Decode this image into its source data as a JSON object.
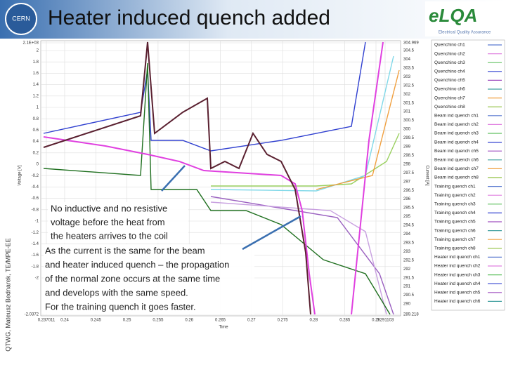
{
  "header": {
    "title": "Heater induced quench added"
  },
  "sidebar": {
    "footer": "QTWG, Mateusz Bednarek, TE/MPE-EE"
  },
  "logos": {
    "left": "CERN",
    "right": "eLQA",
    "right_subtitle": "Electrical Quality Assurance"
  },
  "plot": {
    "x_label": "Time",
    "y_label": "Voltage [V]",
    "y2_label": "Current [A]",
    "x_ticks": [
      "0.237011",
      "0.24",
      "0.245",
      "0.25",
      "0.255",
      "0.26",
      "0.265",
      "0.27",
      "0.275",
      "0.28",
      "0.285",
      "0.29",
      "0.291103"
    ],
    "y_ticks": [
      "2.1E+03",
      "2",
      "1.8",
      "1.6",
      "1.4",
      "1.2",
      "1",
      "0.8",
      "0.6",
      "0.4",
      "0.2",
      "0",
      "-0.2",
      "-0.4",
      "-0.6",
      "-0.8",
      "-1",
      "-1.2",
      "-1.4",
      "-1.6",
      "-1.8",
      "-2",
      "-2.0372"
    ],
    "y2_ticks": [
      "304.969",
      "304.5",
      "304",
      "303.5",
      "303",
      "302.5",
      "302",
      "301.5",
      "301",
      "300.5",
      "300",
      "299.5",
      "299",
      "298.5",
      "298",
      "297.5",
      "297",
      "296.5",
      "296",
      "295.5",
      "295",
      "294.5",
      "294",
      "293.5",
      "293",
      "292.5",
      "292",
      "291.5",
      "291",
      "290.5",
      "290",
      "289.218"
    ],
    "legend": [
      "Quenchino ch1",
      "Quenchino ch2",
      "Quenchino ch3",
      "Quenchino ch4",
      "Quenchino ch5",
      "Quenchino ch6",
      "Quenchino ch7",
      "Quenchino ch8",
      "Beam ind quench ch1",
      "Beam ind quench ch2",
      "Beam ind quench ch3",
      "Beam ind quench ch4",
      "Beam ind quench ch5",
      "Beam ind quench ch6",
      "Beam ind quench ch7",
      "Beam ind quench ch8",
      "Training quench ch1",
      "Training quench ch2",
      "Training quench ch3",
      "Training quench ch4",
      "Training quench ch5",
      "Training quench ch6",
      "Training quench ch7",
      "Training quench ch8",
      "Heater ind quench ch1",
      "Heater ind quench ch2",
      "Heater ind quench ch3",
      "Heater ind quench ch4",
      "Heater ind quench ch5",
      "Heater ind quench ch6"
    ]
  },
  "annotations": [
    {
      "lines": [
        "No inductive and no resistive",
        "voltage before the heat from",
        "the heaters arrives to the coil"
      ]
    },
    {
      "lines": [
        "As the current is the same for the beam",
        "and heater induced quench – the propagation",
        "of the normal zone occurs at the same time",
        "and develops with the same speed.",
        "For the training quench it goes faster."
      ]
    }
  ]
}
